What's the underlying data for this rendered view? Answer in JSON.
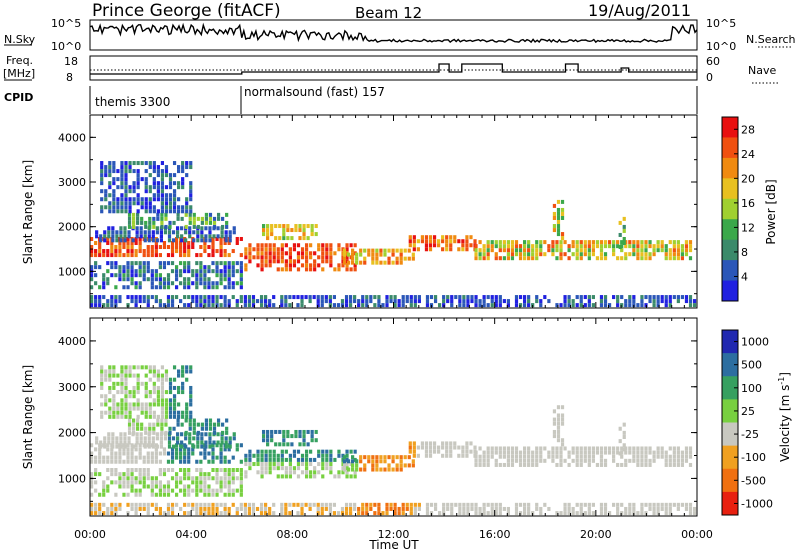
{
  "header": {
    "station": "Prince George (fitACF)",
    "beam": "Beam 12",
    "date": "19/Aug/2011"
  },
  "panels": {
    "nsky_label": "N.Sky",
    "nsearch_label": "N.Search",
    "freq_label_1": "Freq.",
    "freq_label_2": "[MHz]",
    "nave_label": "Nave",
    "cpid_label": "CPID",
    "n_ticks_left": [
      "10^5",
      "10^0"
    ],
    "n_ticks_right": [
      "10^5",
      "10^0"
    ],
    "freq_ticks": [
      "18",
      "8"
    ],
    "nave_ticks": [
      "60",
      "0"
    ]
  },
  "cpid_segments": [
    {
      "label": "themis 3300",
      "start_hour": 0.0
    },
    {
      "label": "normalsound (fast) 157",
      "start_hour": 6.0
    }
  ],
  "colors": {
    "power": [
      "#2020e0",
      "#2a56b8",
      "#3a8a6a",
      "#3aa84a",
      "#a0d030",
      "#e8c020",
      "#f08a10",
      "#f05010",
      "#e81010"
    ],
    "velocity": [
      "#2028b0",
      "#2c6ea0",
      "#36a060",
      "#78d040",
      "#c8c8c0",
      "#f0a020",
      "#f07010",
      "#e82010"
    ],
    "ground_scatter": "#b8b8b0"
  },
  "chart_data": [
    {
      "type": "heatmap",
      "name": "power",
      "ylabel": "Slant Range [km]",
      "xlim": [
        0,
        24
      ],
      "ylim": [
        180,
        4500
      ],
      "yticks": [
        1000,
        2000,
        3000,
        4000
      ],
      "ytick_labels": [
        "1000",
        "2000",
        "3000",
        "4000"
      ],
      "colorbar_label": "Power [dB]",
      "colorbar_ticks": [
        "4",
        "8",
        "12",
        "16",
        "20",
        "24",
        "28"
      ],
      "colorbar_range": [
        0,
        30
      ]
    },
    {
      "type": "heatmap",
      "name": "velocity",
      "ylabel": "Slant Range [km]",
      "xlim": [
        0,
        24
      ],
      "ylim": [
        180,
        4500
      ],
      "yticks": [
        1000,
        2000,
        3000,
        4000
      ],
      "ytick_labels": [
        "1000",
        "2000",
        "3000",
        "4000"
      ],
      "colorbar_label": "Velocity [m s^-1]",
      "colorbar_ticks": [
        "1000",
        "500",
        "100",
        "25",
        "-25",
        "-100",
        "-500",
        "-1000"
      ]
    }
  ],
  "time_axis": {
    "xlabel": "Time UT",
    "ticks": [
      "00:00",
      "04:00",
      "08:00",
      "12:00",
      "16:00",
      "20:00",
      "00:00"
    ]
  }
}
